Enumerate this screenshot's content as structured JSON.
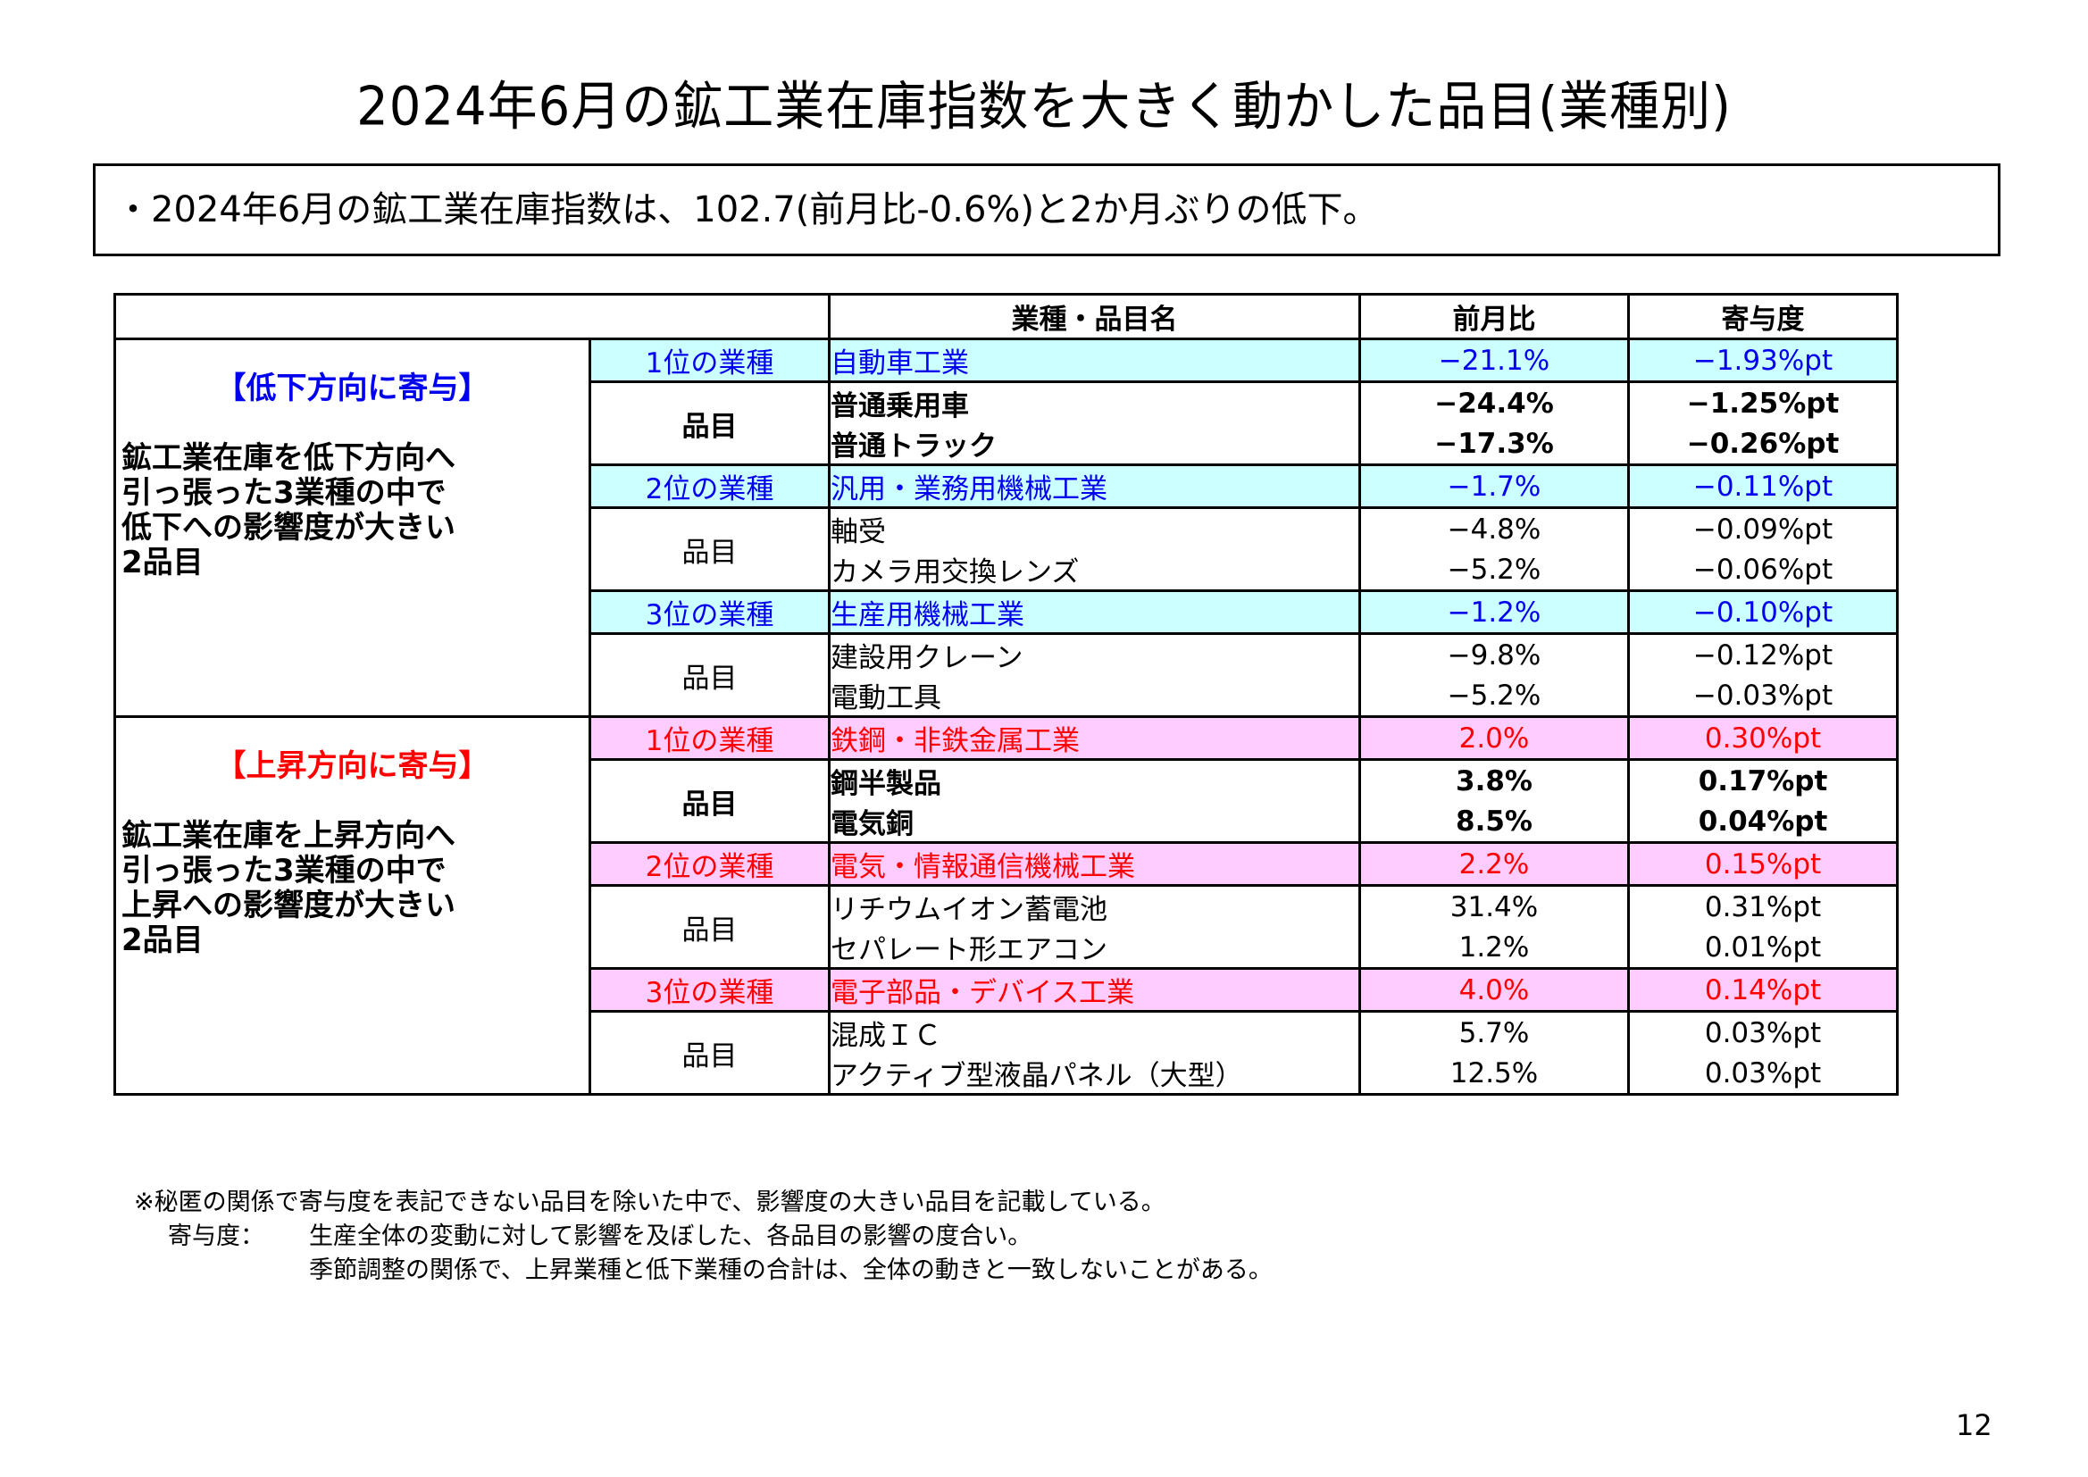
{
  "title": "2024年6月の鉱工業在庫指数を大きく動かした品目(業種別)",
  "summary": "・2024年6月の鉱工業在庫指数は、102.7(前月比-0.6%)と2か月ぶりの低下。",
  "table": {
    "headers": {
      "name": "業種・品目名",
      "mom": "前月比",
      "contrib": "寄与度"
    },
    "item_label": "品目",
    "groups": [
      {
        "title": "【低下方向に寄与】",
        "desc": [
          "鉱工業在庫を低下方向へ",
          "引っ張った3業種の中で",
          "低下への影響度が大きい",
          "2品目"
        ],
        "industries": [
          {
            "rank": "1位の業種",
            "name": "自動車工業",
            "mom": "−21.1%",
            "contrib": "−1.93%pt",
            "items": [
              {
                "name": "普通乗用車",
                "mom": "−24.4%",
                "contrib": "−1.25%pt"
              },
              {
                "name": "普通トラック",
                "mom": "−17.3%",
                "contrib": "−0.26%pt"
              }
            ]
          },
          {
            "rank": "2位の業種",
            "name": "汎用・業務用機械工業",
            "mom": "−1.7%",
            "contrib": "−0.11%pt",
            "items": [
              {
                "name": "軸受",
                "mom": "−4.8%",
                "contrib": "−0.09%pt"
              },
              {
                "name": "カメラ用交換レンズ",
                "mom": "−5.2%",
                "contrib": "−0.06%pt"
              }
            ]
          },
          {
            "rank": "3位の業種",
            "name": "生産用機械工業",
            "mom": "−1.2%",
            "contrib": "−0.10%pt",
            "items": [
              {
                "name": "建設用クレーン",
                "mom": "−9.8%",
                "contrib": "−0.12%pt"
              },
              {
                "name": "電動工具",
                "mom": "−5.2%",
                "contrib": "−0.03%pt"
              }
            ]
          }
        ]
      },
      {
        "title": "【上昇方向に寄与】",
        "desc": [
          "鉱工業在庫を上昇方向へ",
          "引っ張った3業種の中で",
          "上昇への影響度が大きい",
          "2品目"
        ],
        "industries": [
          {
            "rank": "1位の業種",
            "name": "鉄鋼・非鉄金属工業",
            "mom": "2.0%",
            "contrib": "0.30%pt",
            "items": [
              {
                "name": "鋼半製品",
                "mom": "3.8%",
                "contrib": "0.17%pt"
              },
              {
                "name": "電気銅",
                "mom": "8.5%",
                "contrib": "0.04%pt"
              }
            ]
          },
          {
            "rank": "2位の業種",
            "name": "電気・情報通信機械工業",
            "mom": "2.2%",
            "contrib": "0.15%pt",
            "items": [
              {
                "name": "リチウムイオン蓄電池",
                "mom": "31.4%",
                "contrib": "0.31%pt"
              },
              {
                "name": "セパレート形エアコン",
                "mom": "1.2%",
                "contrib": "0.01%pt"
              }
            ]
          },
          {
            "rank": "3位の業種",
            "name": "電子部品・デバイス工業",
            "mom": "4.0%",
            "contrib": "0.14%pt",
            "items": [
              {
                "name": "混成ＩＣ",
                "mom": "5.7%",
                "contrib": "0.03%pt"
              },
              {
                "name": "アクティブ型液晶パネル（大型）",
                "mom": "12.5%",
                "contrib": "0.03%pt"
              }
            ]
          }
        ]
      }
    ]
  },
  "notes": {
    "line1": "※秘匿の関係で寄与度を表記できない品目を除いた中で、影響度の大きい品目を記載している。",
    "label": "寄与度：",
    "line2": "生産全体の変動に対して影響を及ぼした、各品目の影響の度合い。",
    "line3": "季節調整の関係で、上昇業種と低下業種の合計は、全体の動きと一致しないことがある。"
  },
  "page_number": "12",
  "colors": {
    "down_fill": "#ccffff",
    "down_text": "#0000ee",
    "up_fill": "#ffccff",
    "up_text": "#ff0000"
  }
}
